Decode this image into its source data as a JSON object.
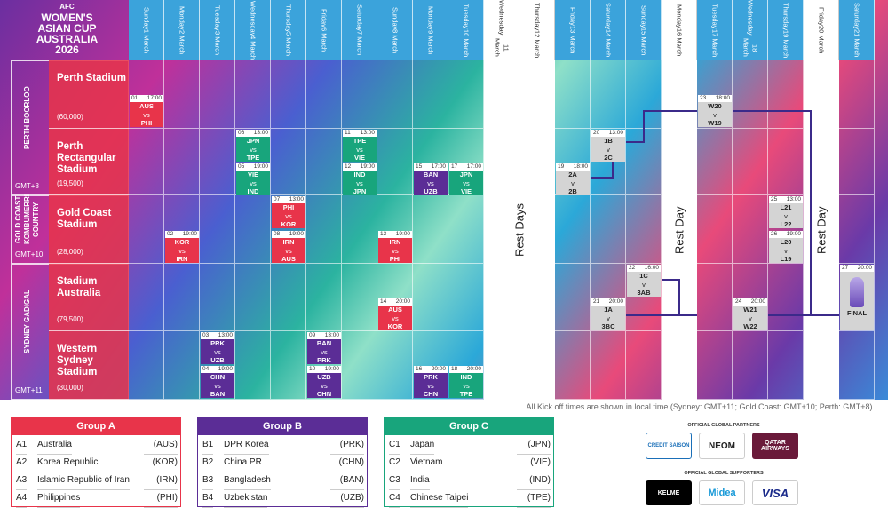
{
  "header": {
    "logo": {
      "line1": "AFC",
      "line2": "WOMEN'S",
      "line3": "ASIAN CUP",
      "line4": "AUSTRALIA",
      "line5": "2026"
    }
  },
  "schedule": {
    "days": [
      {
        "weekday": "Sunday",
        "date": "1 March"
      },
      {
        "weekday": "Monday",
        "date": "2 March"
      },
      {
        "weekday": "Tuesday",
        "date": "3 March"
      },
      {
        "weekday": "Wednesday",
        "date": "4 March"
      },
      {
        "weekday": "Thursday",
        "date": "5 March"
      },
      {
        "weekday": "Friday",
        "date": "6 March"
      },
      {
        "weekday": "Saturday",
        "date": "7 March"
      },
      {
        "weekday": "Sunday",
        "date": "8 March"
      },
      {
        "weekday": "Monday",
        "date": "9 March"
      },
      {
        "weekday": "Tuesday",
        "date": "10 March"
      },
      {
        "weekday": "Wednesday",
        "date": "11 March"
      },
      {
        "weekday": "Thursday",
        "date": "12 March"
      },
      {
        "weekday": "Friday",
        "date": "13 March"
      },
      {
        "weekday": "Saturday",
        "date": "14 March"
      },
      {
        "weekday": "Sunday",
        "date": "15 March"
      },
      {
        "weekday": "Monday",
        "date": "16 March"
      },
      {
        "weekday": "Tuesday",
        "date": "17 March"
      },
      {
        "weekday": "Wednesday",
        "date": "18 March"
      },
      {
        "weekday": "Thursday",
        "date": "19 March"
      },
      {
        "weekday": "Friday",
        "date": "20 March"
      },
      {
        "weekday": "Saturday",
        "date": "21 March"
      }
    ],
    "regions": [
      {
        "name": "PERTH BOORLOO",
        "timezone": "GMT+8",
        "venues": [
          {
            "name": "Perth Stadium",
            "capacity": "(60,000)"
          },
          {
            "name": "Perth Rectangular Stadium",
            "capacity": "(19,500)"
          }
        ]
      },
      {
        "name": "GOLD COAST KOMBUMERRI COUNTRY",
        "timezone": "GMT+10",
        "venues": [
          {
            "name": "Gold Coast Stadium",
            "capacity": "(28,000)"
          }
        ]
      },
      {
        "name": "SYDNEY GADIGAL",
        "timezone": "GMT+11",
        "venues": [
          {
            "name": "Stadium Australia",
            "capacity": "(79,500)"
          },
          {
            "name": "Western Sydney Stadium",
            "capacity": "(30,000)"
          }
        ]
      }
    ],
    "matches": [
      {
        "number": "01",
        "time": "17:00",
        "home": "AUS",
        "sep": "vs",
        "away": "PHI"
      },
      {
        "number": "02",
        "time": "19:00",
        "home": "KOR",
        "sep": "vs",
        "away": "IRN"
      },
      {
        "number": "03",
        "time": "13:00",
        "home": "PRK",
        "sep": "vs",
        "away": "UZB"
      },
      {
        "number": "04",
        "time": "19:00",
        "home": "CHN",
        "sep": "vs",
        "away": "BAN"
      },
      {
        "number": "05",
        "time": "19:00",
        "home": "VIE",
        "sep": "vs",
        "away": "IND"
      },
      {
        "number": "06",
        "time": "13:00",
        "home": "JPN",
        "sep": "vs",
        "away": "TPE"
      },
      {
        "number": "07",
        "time": "13:00",
        "home": "PHI",
        "sep": "vs",
        "away": "KOR"
      },
      {
        "number": "08",
        "time": "19:00",
        "home": "IRN",
        "sep": "vs",
        "away": "AUS"
      },
      {
        "number": "09",
        "time": "13:00",
        "home": "BAN",
        "sep": "vs",
        "away": "PRK"
      },
      {
        "number": "10",
        "time": "19:00",
        "home": "UZB",
        "sep": "vs",
        "away": "CHN"
      },
      {
        "number": "11",
        "time": "13:00",
        "home": "TPE",
        "sep": "vs",
        "away": "VIE"
      },
      {
        "number": "12",
        "time": "19:00",
        "home": "IND",
        "sep": "vs",
        "away": "JPN"
      },
      {
        "number": "13",
        "time": "19:00",
        "home": "IRN",
        "sep": "vs",
        "away": "PHI"
      },
      {
        "number": "14",
        "time": "20:00",
        "home": "AUS",
        "sep": "vs",
        "away": "KOR"
      },
      {
        "number": "15",
        "time": "17:00",
        "home": "BAN",
        "sep": "vs",
        "away": "UZB"
      },
      {
        "number": "16",
        "time": "20:00",
        "home": "PRK",
        "sep": "vs",
        "away": "CHN"
      },
      {
        "number": "17",
        "time": "17:00",
        "home": "JPN",
        "sep": "vs",
        "away": "VIE"
      },
      {
        "number": "18",
        "time": "20:00",
        "home": "IND",
        "sep": "vs",
        "away": "TPE"
      },
      {
        "number": "19",
        "time": "18:00",
        "home": "2A",
        "sep": "v",
        "away": "2B"
      },
      {
        "number": "20",
        "time": "13:00",
        "home": "1B",
        "sep": "v",
        "away": "2C"
      },
      {
        "number": "21",
        "time": "20:00",
        "home": "1A",
        "sep": "v",
        "away": "3BC"
      },
      {
        "number": "22",
        "time": "16:00",
        "home": "1C",
        "sep": "v",
        "away": "3AB"
      },
      {
        "number": "23",
        "time": "18:00",
        "home": "W20",
        "sep": "v",
        "away": "W19"
      },
      {
        "number": "24",
        "time": "20:00",
        "home": "W21",
        "sep": "v",
        "away": "W22"
      },
      {
        "number": "25",
        "time": "13:00",
        "home": "L21",
        "sep": "v",
        "away": "L22"
      },
      {
        "number": "26",
        "time": "19:00",
        "home": "L20",
        "sep": "v",
        "away": "L19"
      },
      {
        "number": "27",
        "time": "20:00",
        "label": "FINAL"
      }
    ],
    "rest": [
      "Rest Days",
      "Rest Day",
      "Rest Day"
    ],
    "note": "All Kick off times are shown in local time (Sydney: GMT+11; Gold Coast: GMT+10; Perth: GMT+8)."
  },
  "groups": [
    {
      "title": "Group A",
      "teams": [
        {
          "code": "A1",
          "name": "Australia",
          "abbr": "(AUS)"
        },
        {
          "code": "A2",
          "name": "Korea Republic",
          "abbr": "(KOR)"
        },
        {
          "code": "A3",
          "name": "Islamic Republic of Iran",
          "abbr": "(IRN)"
        },
        {
          "code": "A4",
          "name": "Philippines",
          "abbr": "(PHI)"
        }
      ]
    },
    {
      "title": "Group B",
      "teams": [
        {
          "code": "B1",
          "name": "DPR Korea",
          "abbr": "(PRK)"
        },
        {
          "code": "B2",
          "name": "China PR",
          "abbr": "(CHN)"
        },
        {
          "code": "B3",
          "name": "Bangladesh",
          "abbr": "(BAN)"
        },
        {
          "code": "B4",
          "name": "Uzbekistan",
          "abbr": "(UZB)"
        }
      ]
    },
    {
      "title": "Group C",
      "teams": [
        {
          "code": "C1",
          "name": "Japan",
          "abbr": "(JPN)"
        },
        {
          "code": "C2",
          "name": "Vietnam",
          "abbr": "(VIE)"
        },
        {
          "code": "C3",
          "name": "India",
          "abbr": "(IND)"
        },
        {
          "code": "C4",
          "name": "Chinese Taipei",
          "abbr": "(TPE)"
        }
      ]
    }
  ],
  "sponsors": {
    "partners_title": "OFFICIAL GLOBAL PARTNERS",
    "partners": [
      "CREDIT SAISON",
      "NEOM",
      "QATAR AIRWAYS"
    ],
    "supporters_title": "OFFICIAL GLOBAL SUPPORTERS",
    "supporters": [
      "KELME",
      "Midea",
      "VISA"
    ]
  }
}
